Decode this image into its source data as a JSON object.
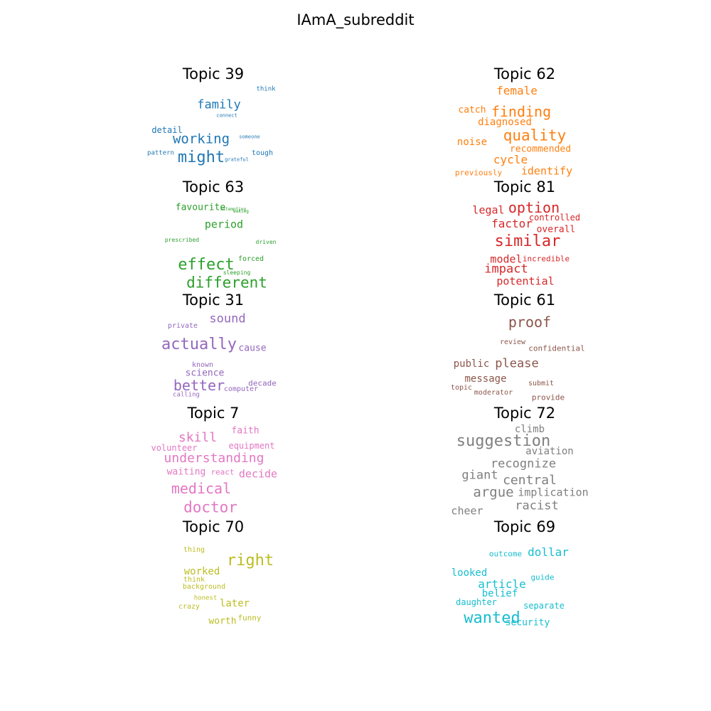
{
  "title": "IAmA_subreddit",
  "topics": [
    {
      "label": "Topic 39",
      "color": "#1f77b4",
      "words": [
        "family",
        "working",
        "might",
        "think",
        "connect",
        "detail",
        "someone",
        "pattern",
        "grateful",
        "tough"
      ]
    },
    {
      "label": "Topic 62",
      "color": "#ff7f0e",
      "words": [
        "female",
        "catch",
        "finding",
        "diagnosed",
        "quality",
        "noise",
        "recommended",
        "cycle",
        "previously",
        "identify"
      ]
    },
    {
      "label": "Topic 63",
      "color": "#2ca02c",
      "words": [
        "favourite",
        "attempting",
        "waking",
        "period",
        "prescribed",
        "driven",
        "effect",
        "forced",
        "sleeping",
        "different"
      ]
    },
    {
      "label": "Topic 81",
      "color": "#d62728",
      "words": [
        "legal",
        "option",
        "controlled",
        "factor",
        "overall",
        "similar",
        "model",
        "incredible",
        "impact",
        "potential"
      ]
    },
    {
      "label": "Topic 31",
      "color": "#9467bd",
      "words": [
        "sound",
        "private",
        "actually",
        "cause",
        "known",
        "science",
        "better",
        "decade",
        "computer",
        "calling"
      ]
    },
    {
      "label": "Topic 61",
      "color": "#8c564b",
      "words": [
        "proof",
        "review",
        "confidential",
        "public",
        "please",
        "message",
        "submit",
        "topic",
        "moderator",
        "provide"
      ]
    },
    {
      "label": "Topic 7",
      "color": "#e377c2",
      "words": [
        "faith",
        "skill",
        "volunteer",
        "equipment",
        "understanding",
        "waiting",
        "react",
        "decide",
        "medical",
        "doctor"
      ]
    },
    {
      "label": "Topic 72",
      "color": "#7f7f7f",
      "words": [
        "climb",
        "suggestion",
        "aviation",
        "recognize",
        "giant",
        "central",
        "argue",
        "implication",
        "racist",
        "cheer"
      ]
    },
    {
      "label": "Topic 70",
      "color": "#bcbd22",
      "words": [
        "thing",
        "right",
        "worked",
        "think",
        "background",
        "honest",
        "later",
        "crazy",
        "funny",
        "worth"
      ]
    },
    {
      "label": "Topic 69",
      "color": "#17becf",
      "words": [
        "outcome",
        "dollar",
        "looked",
        "guide",
        "article",
        "belief",
        "daughter",
        "separate",
        "wanted",
        "security"
      ]
    }
  ]
}
